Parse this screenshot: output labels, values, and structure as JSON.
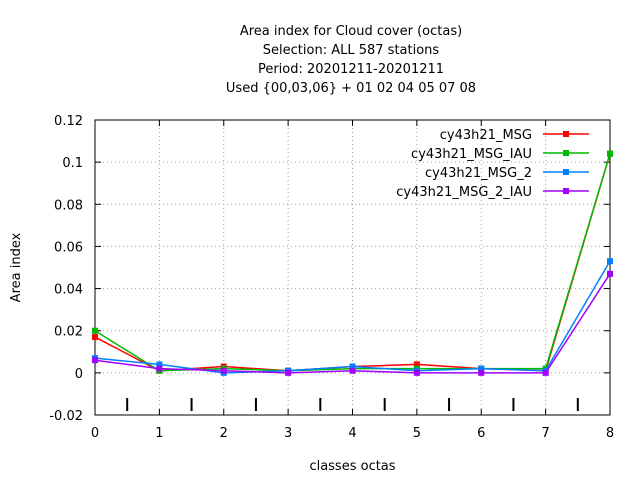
{
  "chart_data": {
    "type": "line",
    "title_lines": [
      "Area index  for Cloud cover (octas)",
      "Selection: ALL    587 stations",
      "Period: 20201211-20201211",
      "Used {00,03,06} + 01 02 04 05 07 08"
    ],
    "xlabel": "classes octas",
    "ylabel": "Area index",
    "xlim": [
      0,
      8
    ],
    "ylim": [
      -0.02,
      0.12
    ],
    "xticks": [
      0,
      1,
      2,
      3,
      4,
      5,
      6,
      7,
      8
    ],
    "yticks": [
      -0.02,
      0,
      0.02,
      0.04,
      0.06,
      0.08,
      0.1,
      0.12
    ],
    "ytick_labels": [
      "-0.02",
      "0",
      "0.02",
      "0.04",
      "0.06",
      "0.08",
      "0.1",
      "0.12"
    ],
    "class_markers_x": [
      0.5,
      1.5,
      2.5,
      3.5,
      4.5,
      5.5,
      6.5,
      7.5
    ],
    "grid": true,
    "legend_position": "top-right",
    "x": [
      0,
      1,
      2,
      3,
      4,
      5,
      6,
      7,
      8
    ],
    "series": [
      {
        "name": "cy43h21_MSG",
        "color": "#ff0000",
        "values": [
          0.017,
          0.001,
          0.003,
          0.001,
          0.003,
          0.004,
          0.002,
          0.001,
          0.104
        ]
      },
      {
        "name": "cy43h21_MSG_IAU",
        "color": "#00bb00",
        "values": [
          0.02,
          0.001,
          0.002,
          0.001,
          0.002,
          0.002,
          0.002,
          0.002,
          0.104
        ]
      },
      {
        "name": "cy43h21_MSG_2",
        "color": "#0080ff",
        "values": [
          0.007,
          0.004,
          0.0,
          0.001,
          0.003,
          0.001,
          0.002,
          0.001,
          0.053
        ]
      },
      {
        "name": "cy43h21_MSG_2_IAU",
        "color": "#a000ff",
        "values": [
          0.006,
          0.002,
          0.001,
          0.0,
          0.001,
          0.0,
          0.0,
          0.0,
          0.047
        ]
      }
    ]
  }
}
